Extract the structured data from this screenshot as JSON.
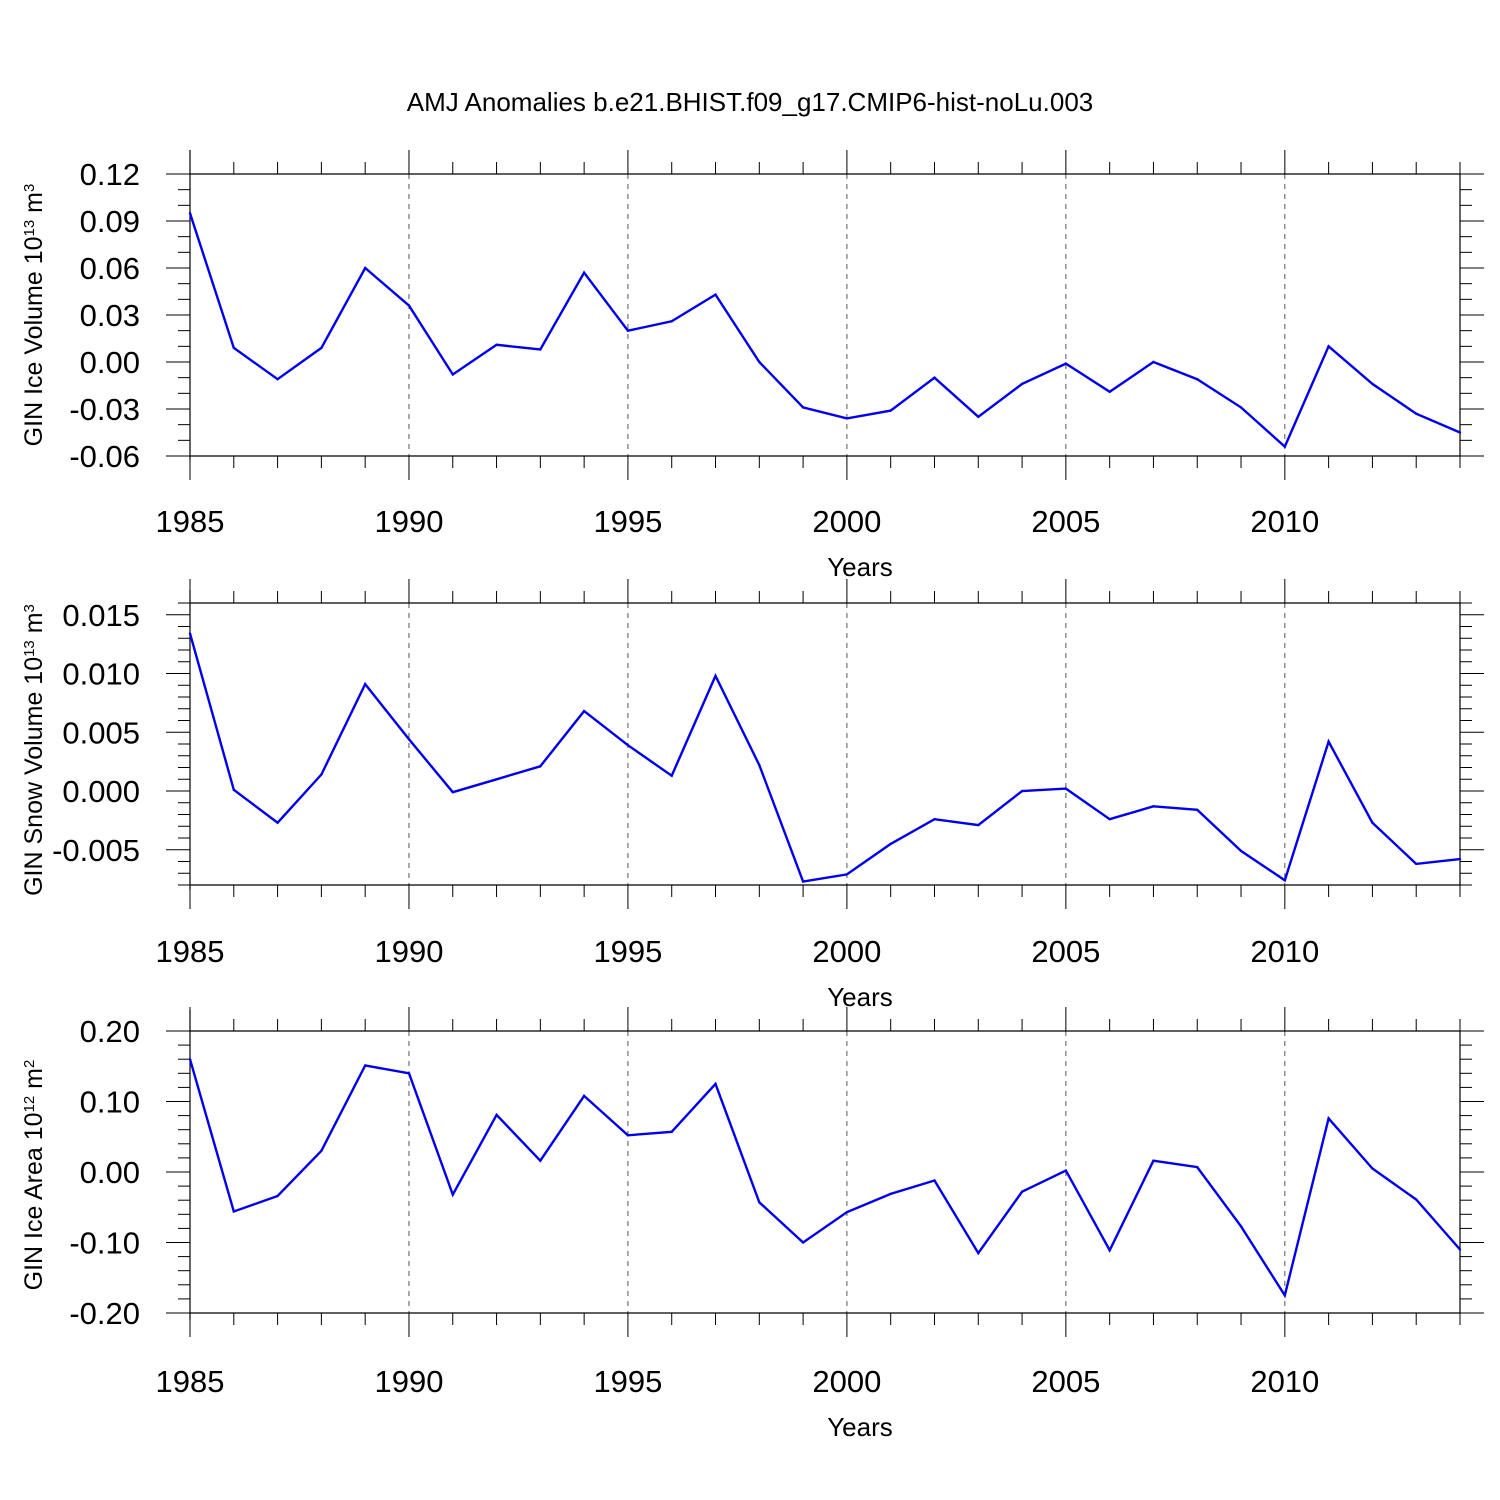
{
  "title": "AMJ Anomalies b.e21.BHIST.f09_g17.CMIP6-hist-noLu.003",
  "colors": {
    "line": "#0000ee",
    "axis": "#000000",
    "grid": "#555555"
  },
  "chart_data": [
    {
      "type": "line",
      "ylabel_main": "GIN Ice Volume 10",
      "ylabel_exp": "13",
      "ylabel_unit": " m",
      "ylabel_unit_exp": "3",
      "xlabel": "Years",
      "xlim": [
        1985,
        2014
      ],
      "ylim": [
        -0.06,
        0.12
      ],
      "xticks": [
        1985,
        1990,
        1995,
        2000,
        2005,
        2010
      ],
      "xtick_labels": [
        "1985",
        "1990",
        "1995",
        "2000",
        "2005",
        "2010"
      ],
      "yticks": [
        -0.06,
        -0.03,
        0.0,
        0.03,
        0.06,
        0.09,
        0.12
      ],
      "ytick_labels": [
        "-0.06",
        "-0.03",
        "0.00",
        "0.03",
        "0.06",
        "0.09",
        "0.12"
      ],
      "yminor_step": 0.01,
      "x": [
        1985,
        1986,
        1987,
        1988,
        1989,
        1990,
        1991,
        1992,
        1993,
        1994,
        1995,
        1996,
        1997,
        1998,
        1999,
        2000,
        2001,
        2002,
        2003,
        2004,
        2005,
        2006,
        2007,
        2008,
        2009,
        2010,
        2011,
        2012,
        2013,
        2014
      ],
      "series": [
        {
          "values": [
            0.095,
            0.009,
            -0.011,
            0.009,
            0.06,
            0.036,
            -0.008,
            0.011,
            0.008,
            0.057,
            0.02,
            0.026,
            0.043,
            0.0,
            -0.029,
            -0.036,
            -0.031,
            -0.01,
            -0.035,
            -0.014,
            -0.001,
            -0.019,
            0.0,
            -0.011,
            -0.029,
            -0.054,
            0.01,
            -0.014,
            -0.033,
            -0.045
          ]
        }
      ]
    },
    {
      "type": "line",
      "ylabel_main": "GIN Snow Volume 10",
      "ylabel_exp": "13",
      "ylabel_unit": " m",
      "ylabel_unit_exp": "3",
      "xlabel": "Years",
      "xlim": [
        1985,
        2014
      ],
      "ylim": [
        -0.008,
        0.016
      ],
      "xticks": [
        1985,
        1990,
        1995,
        2000,
        2005,
        2010
      ],
      "xtick_labels": [
        "1985",
        "1990",
        "1995",
        "2000",
        "2005",
        "2010"
      ],
      "yticks": [
        -0.005,
        0.0,
        0.005,
        0.01,
        0.015
      ],
      "ytick_labels": [
        "-0.005",
        "0.000",
        "0.005",
        "0.010",
        "0.015"
      ],
      "yminor_step": 0.001,
      "x": [
        1985,
        1986,
        1987,
        1988,
        1989,
        1990,
        1991,
        1992,
        1993,
        1994,
        1995,
        1996,
        1997,
        1998,
        1999,
        2000,
        2001,
        2002,
        2003,
        2004,
        2005,
        2006,
        2007,
        2008,
        2009,
        2010,
        2011,
        2012,
        2013,
        2014
      ],
      "series": [
        {
          "values": [
            0.0134,
            0.0001,
            -0.0027,
            0.0014,
            0.0091,
            0.0044,
            -0.0001,
            0.001,
            0.0021,
            0.0068,
            0.0039,
            0.0013,
            0.0098,
            0.0022,
            -0.0077,
            -0.0071,
            -0.0045,
            -0.0024,
            -0.0029,
            0.0,
            0.0002,
            -0.0024,
            -0.0013,
            -0.0016,
            -0.0051,
            -0.0076,
            0.0042,
            -0.0027,
            -0.0062,
            -0.0058
          ]
        }
      ]
    },
    {
      "type": "line",
      "ylabel_main": "GIN Ice Area 10",
      "ylabel_exp": "12",
      "ylabel_unit": " m",
      "ylabel_unit_exp": "2",
      "xlabel": "Years",
      "xlim": [
        1985,
        2014
      ],
      "ylim": [
        -0.2,
        0.2
      ],
      "xticks": [
        1985,
        1990,
        1995,
        2000,
        2005,
        2010
      ],
      "xtick_labels": [
        "1985",
        "1990",
        "1995",
        "2000",
        "2005",
        "2010"
      ],
      "yticks": [
        -0.2,
        -0.1,
        0.0,
        0.1,
        0.2
      ],
      "ytick_labels": [
        "-0.20",
        "-0.10",
        "0.00",
        "0.10",
        "0.20"
      ],
      "yminor_step": 0.02,
      "x": [
        1985,
        1986,
        1987,
        1988,
        1989,
        1990,
        1991,
        1992,
        1993,
        1994,
        1995,
        1996,
        1997,
        1998,
        1999,
        2000,
        2001,
        2002,
        2003,
        2004,
        2005,
        2006,
        2007,
        2008,
        2009,
        2010,
        2011,
        2012,
        2013,
        2014
      ],
      "series": [
        {
          "values": [
            0.16,
            -0.056,
            -0.034,
            0.03,
            0.151,
            0.14,
            -0.032,
            0.081,
            0.016,
            0.108,
            0.052,
            0.057,
            0.125,
            -0.043,
            -0.1,
            -0.057,
            -0.031,
            -0.012,
            -0.115,
            -0.028,
            0.002,
            -0.111,
            0.016,
            0.007,
            -0.077,
            -0.175,
            0.076,
            0.005,
            -0.039,
            -0.11
          ]
        }
      ]
    }
  ]
}
